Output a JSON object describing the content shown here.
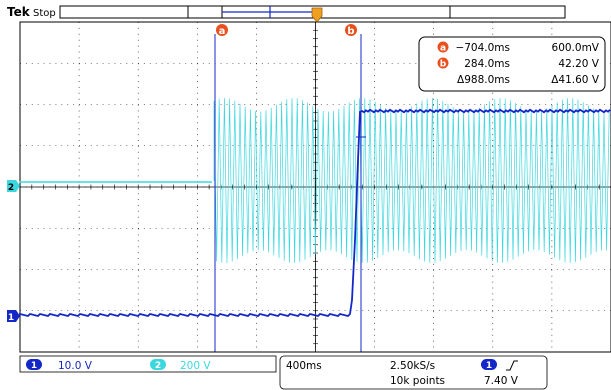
{
  "header": {
    "brand": "Tek",
    "status": "Stop"
  },
  "cursors": {
    "a": {
      "marker": "a",
      "time": "−704.0ms",
      "value": "600.0mV"
    },
    "b": {
      "marker": "b",
      "time": "284.0ms",
      "value": "42.20 V"
    },
    "delta": {
      "time": "Δ988.0ms",
      "value": "Δ41.60 V"
    }
  },
  "channels": {
    "ch1": {
      "number": "1",
      "scale": "10.0 V",
      "color": "#1428c8"
    },
    "ch2": {
      "number": "2",
      "scale": "200 V",
      "color": "#3cd8e0"
    }
  },
  "timebase": {
    "scale": "400ms",
    "sample_rate": "2.50kS/s",
    "record_length": "10k points"
  },
  "trigger": {
    "source": "1",
    "slope_icon": "rising-edge-icon",
    "level": "7.40 V"
  },
  "colors": {
    "cursor_marker": "#e8501e",
    "trigger_marker": "#f0a020",
    "grid": "#000000"
  }
}
